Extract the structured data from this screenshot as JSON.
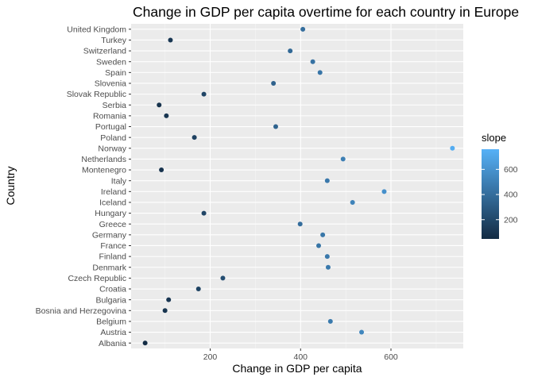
{
  "chart_data": {
    "type": "scatter",
    "title": "Change in GDP per capita overtime for each country in Europe",
    "xlabel": "Change in GDP per capita",
    "ylabel": "Country",
    "xlim": [
      25,
      760
    ],
    "x_ticks": [
      200,
      400,
      600
    ],
    "grid": true,
    "legend": {
      "title": "slope",
      "position": "right",
      "type": "continuous",
      "range": [
        47,
        760
      ],
      "breaks": [
        200,
        400,
        600
      ],
      "colors": {
        "low": "#132B43",
        "high": "#56B1F7"
      }
    },
    "categories": [
      "Albania",
      "Austria",
      "Belgium",
      "Bosnia and Herzegovina",
      "Bulgaria",
      "Croatia",
      "Czech Republic",
      "Denmark",
      "Finland",
      "France",
      "Germany",
      "Greece",
      "Hungary",
      "Iceland",
      "Ireland",
      "Italy",
      "Montenegro",
      "Netherlands",
      "Norway",
      "Poland",
      "Portugal",
      "Romania",
      "Serbia",
      "Slovak Republic",
      "Slovenia",
      "Spain",
      "Sweden",
      "Switzerland",
      "Turkey",
      "United Kingdom"
    ],
    "values": [
      56,
      535,
      466,
      100,
      108,
      174,
      228,
      461,
      459,
      440,
      449,
      399,
      186,
      515,
      585,
      459,
      92,
      494,
      736,
      165,
      345,
      103,
      87,
      186,
      340,
      443,
      427,
      377,
      112,
      405
    ]
  }
}
